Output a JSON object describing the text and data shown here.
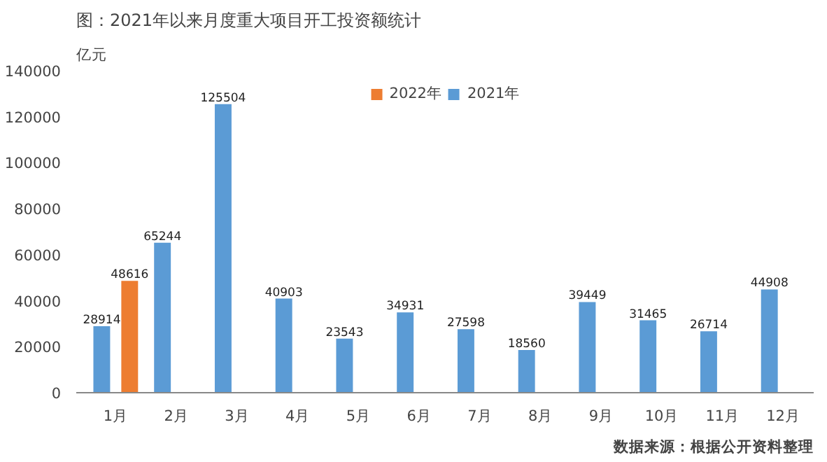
{
  "chart_data": {
    "type": "bar",
    "title": "图：2021年以来月度重大项目开工投资额统计",
    "ylabel": "亿元",
    "categories": [
      "1月",
      "2月",
      "3月",
      "4月",
      "5月",
      "6月",
      "7月",
      "8月",
      "9月",
      "10月",
      "11月",
      "12月"
    ],
    "series": [
      {
        "name": "2021年",
        "color": "#5b9bd5",
        "values": [
          28914,
          65244,
          125504,
          40903,
          23543,
          34931,
          27598,
          18560,
          39449,
          31465,
          26714,
          44908
        ]
      },
      {
        "name": "2022年",
        "color": "#ed7d31",
        "values": [
          48616,
          null,
          null,
          null,
          null,
          null,
          null,
          null,
          null,
          null,
          null,
          null
        ]
      }
    ],
    "ylim": [
      0,
      140000
    ],
    "yticks": [
      0,
      20000,
      40000,
      60000,
      80000,
      100000,
      120000,
      140000
    ],
    "data_labels": true,
    "legend": "top",
    "grid": false,
    "annotations": [
      "数据来源：根据公开资料整理"
    ]
  }
}
